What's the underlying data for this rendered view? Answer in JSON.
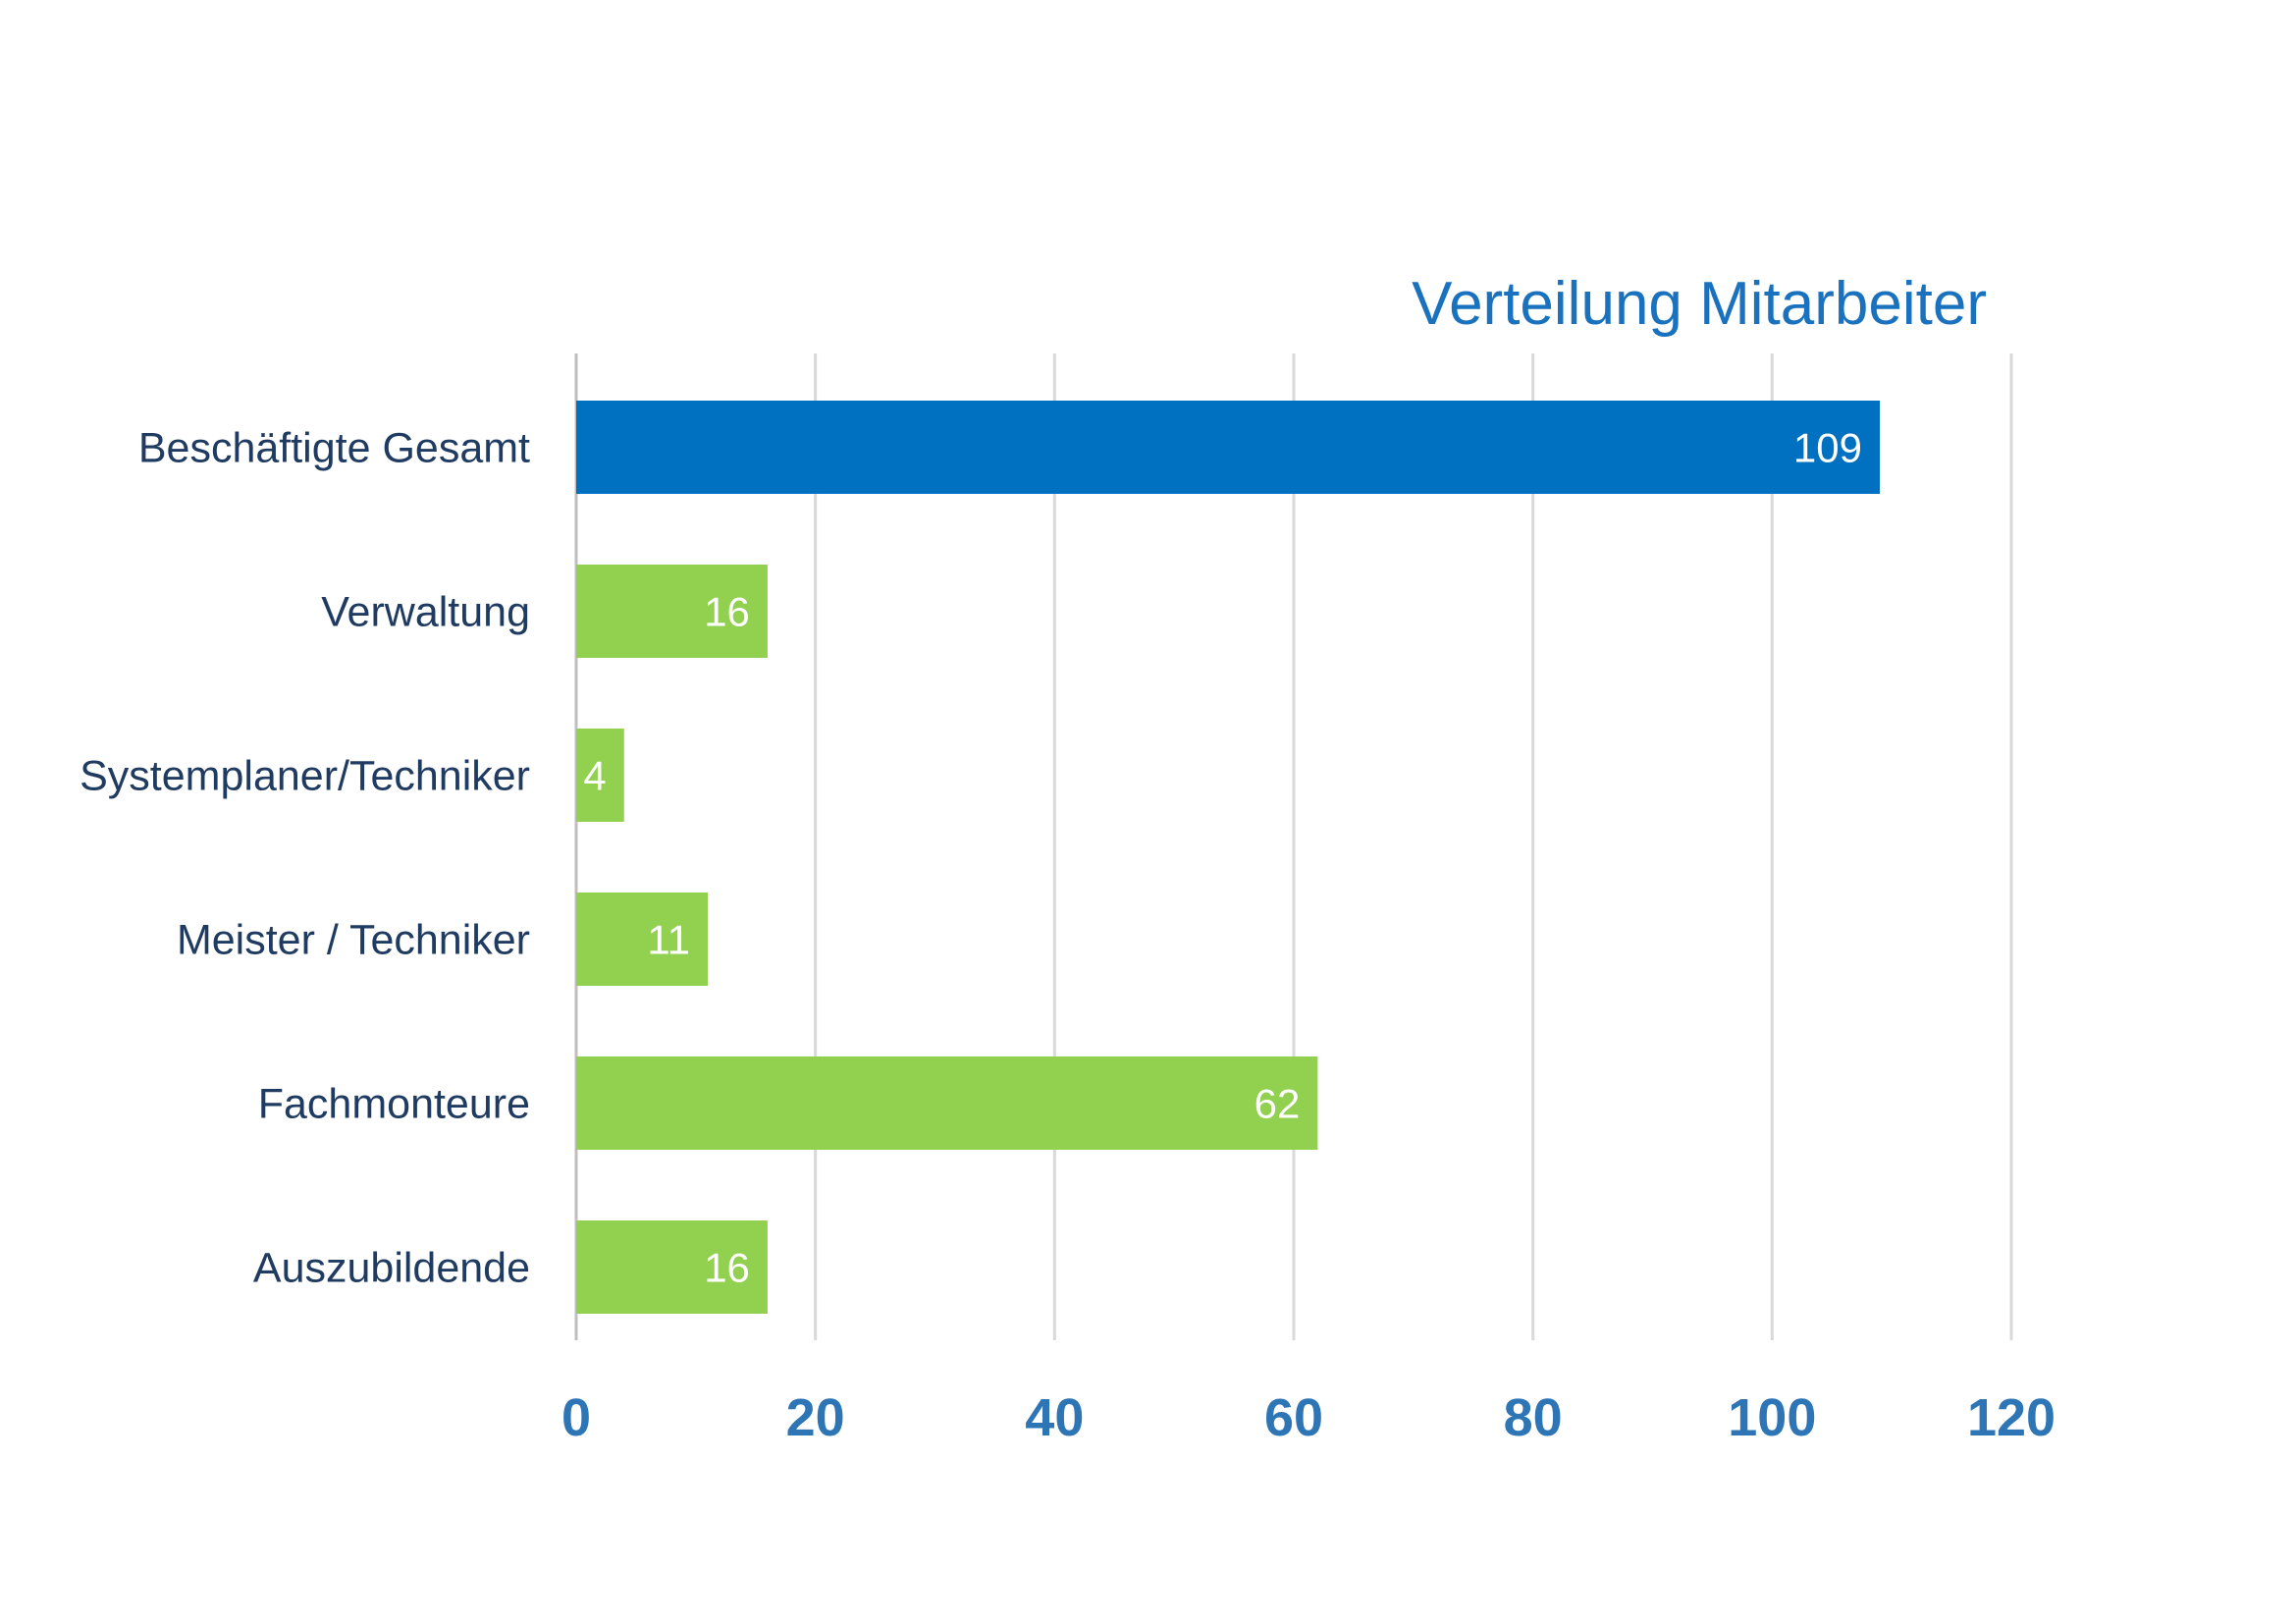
{
  "chart_data": {
    "type": "bar",
    "orientation": "horizontal",
    "title": "Verteilung Mitarbeiter",
    "xlabel": "",
    "ylabel": "",
    "categories": [
      "Beschäftigte Gesamt",
      "Verwaltung",
      "Systemplaner/Techniker",
      "Meister / Techniker",
      "Fachmonteure",
      "Auszubildende"
    ],
    "values": [
      109,
      16,
      4,
      11,
      62,
      16
    ],
    "data_labels": [
      "109",
      "16",
      "4",
      "11",
      "62",
      "16"
    ],
    "bar_colors": [
      "#0070c0",
      "#92d050",
      "#92d050",
      "#92d050",
      "#92d050",
      "#92d050"
    ],
    "xlim": [
      0,
      120
    ],
    "x_ticks": [
      "0",
      "20",
      "40",
      "60",
      "80",
      "100",
      "120"
    ],
    "grid": true,
    "legend": "none"
  },
  "colors": {
    "title": "#1a72bf",
    "category_text": "#1f3b61",
    "tick_text": "#2e75b6",
    "gridline": "#d9d9d9",
    "data_label": "#ffffff"
  }
}
